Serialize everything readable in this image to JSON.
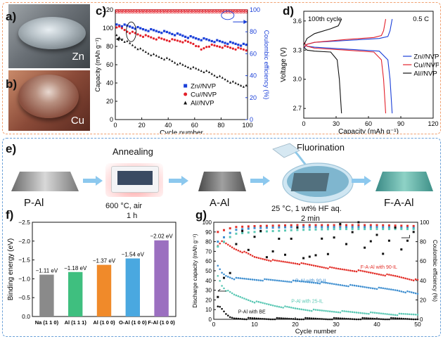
{
  "panels": {
    "a": "a)",
    "b": "b)",
    "c": "c)",
    "d": "d)",
    "e": "e)",
    "f": "f)",
    "g": "g)"
  },
  "photos": {
    "a_metal": "Zn",
    "b_metal": "Cu"
  },
  "colors": {
    "top_border": "#f0a070",
    "bottom_border": "#6aa0d8",
    "zn": "#1a3fd8",
    "cu": "#e3202a",
    "al": "#111111",
    "ce_marker": "#e3202a",
    "green_series": "#5bc8b4",
    "blue_series": "#3f8fd0",
    "red_series": "#e3302a",
    "black_series": "#111111"
  },
  "chart_c": {
    "ylabel": "Capacity (mAh g⁻¹)",
    "y2label": "Coulombic efficiency (%)",
    "xlabel": "Cycle number",
    "xticks": [
      "0",
      "20",
      "40",
      "60",
      "80",
      "100"
    ],
    "yticks": [
      "0",
      "20",
      "40",
      "60",
      "80",
      "100",
      "120"
    ],
    "y2ticks": [
      "0",
      "20",
      "40",
      "60",
      "80",
      "100"
    ],
    "legend": [
      {
        "name": "Zn//NVP",
        "color": "#1a3fd8",
        "marker": "square"
      },
      {
        "name": "Cu//NVP",
        "color": "#e3202a",
        "marker": "circle"
      },
      {
        "name": "Al//NVP",
        "color": "#111111",
        "marker": "triangle"
      }
    ]
  },
  "chart_d": {
    "ylabel": "Voltage (V)",
    "xlabel": "Capacity (mAh g⁻¹)",
    "xticks": [
      "0",
      "30",
      "60",
      "90",
      "120"
    ],
    "yticks": [
      "2.7",
      "3.0",
      "3.3",
      "3.6"
    ],
    "annotation_cycle": "100th cycle",
    "annotation_rate": "0.5 C",
    "legend": [
      {
        "name": "Zn//NVP",
        "color": "#1a3fd8"
      },
      {
        "name": "Cu//NVP",
        "color": "#e3202a"
      },
      {
        "name": "Al//NVP",
        "color": "#111111"
      }
    ]
  },
  "process": {
    "steps": [
      {
        "label": "P-Al"
      },
      {
        "label": "A-Al"
      },
      {
        "label": "F-A-Al"
      }
    ],
    "annealing": {
      "title": "Annealing",
      "cond1": "600 °C, air",
      "cond2": "1 h"
    },
    "fluorination": {
      "title": "Fluorination",
      "cond1": "25 °C, 1 wt% HF aq.",
      "cond2": "2 min"
    }
  },
  "chart_f": {
    "ylabel": "Binding energy (eV)",
    "yticks": [
      "0.0",
      "−0.5",
      "−1.0",
      "−1.5",
      "−2.0",
      "−2.5"
    ],
    "categories": [
      "Na (1 1 0)",
      "Al (1 1 1)",
      "Al (1 0 0)",
      "O-Al (1 0 0)",
      "F-Al (1 0 0)"
    ],
    "labels": [
      "−1.11 eV",
      "−1.18 eV",
      "−1.37 eV",
      "−1.54 eV",
      "−2.02 eV"
    ],
    "colors": [
      "#8a8a8a",
      "#3fbf7f",
      "#f08a2a",
      "#4aa8e0",
      "#9b6fc0"
    ]
  },
  "chart_g": {
    "ylabel": "Discharge capacity (mAh g⁻¹)",
    "y2label": "Coulombic efficiency (%)",
    "xlabel": "Cycle number",
    "xticks": [
      "0",
      "10",
      "20",
      "30",
      "40",
      "50"
    ],
    "yticks": [
      "0",
      "10",
      "20",
      "30",
      "40",
      "50",
      "60",
      "70",
      "80",
      "90",
      "100"
    ],
    "y2ticks": [
      "0",
      "20",
      "40",
      "60",
      "80",
      "100"
    ],
    "labels": [
      "F-A-Al with 90-IL",
      "P-Al with 90-IL",
      "P-Al with 25-IL",
      "P-Al with BE"
    ]
  },
  "chart_data": [
    {
      "type": "scatter",
      "title": "",
      "xlabel": "Cycle number",
      "ylabel": "Capacity (mAh g⁻¹)",
      "xlim": [
        0,
        100
      ],
      "ylim": [
        0,
        120
      ],
      "y2lim": [
        0,
        100
      ],
      "series": [
        {
          "name": "Zn//NVP",
          "x": [
            1,
            10,
            20,
            30,
            40,
            50,
            60,
            70,
            80,
            90,
            100
          ],
          "y": [
            104,
            102,
            99,
            97,
            95,
            92,
            89,
            87,
            85,
            83,
            81
          ]
        },
        {
          "name": "Cu//NVP",
          "x": [
            1,
            10,
            20,
            30,
            40,
            50,
            60,
            65,
            70,
            80,
            90,
            100
          ],
          "y": [
            102,
            96,
            92,
            89,
            87,
            86,
            83,
            76,
            81,
            80,
            78,
            76
          ]
        },
        {
          "name": "Al//NVP",
          "x": [
            1,
            5,
            10,
            20,
            30,
            40,
            50,
            60,
            70,
            80,
            90,
            100
          ],
          "y": [
            92,
            88,
            84,
            76,
            70,
            66,
            60,
            56,
            52,
            46,
            40,
            36
          ]
        },
        {
          "name": "CE Zn",
          "x": [
            1,
            20,
            40,
            60,
            80,
            100
          ],
          "y": [
            99,
            99,
            99,
            99,
            99,
            99
          ]
        },
        {
          "name": "CE Cu",
          "x": [
            1,
            20,
            40,
            60,
            80,
            100
          ],
          "y": [
            99,
            99,
            99,
            99,
            99,
            99
          ]
        },
        {
          "name": "CE Al",
          "x": [
            1,
            20,
            40,
            60,
            80,
            100
          ],
          "y": [
            98,
            98,
            98,
            98,
            98,
            98
          ]
        }
      ]
    },
    {
      "type": "line",
      "title": "",
      "xlabel": "Capacity (mAh g⁻¹)",
      "ylabel": "Voltage (V)",
      "xlim": [
        0,
        120
      ],
      "ylim": [
        2.6,
        3.7
      ],
      "series": [
        {
          "name": "Zn//NVP charge",
          "x": [
            0,
            3,
            10,
            40,
            70,
            78,
            80,
            82
          ],
          "y": [
            3.32,
            3.36,
            3.38,
            3.4,
            3.42,
            3.44,
            3.5,
            3.62
          ]
        },
        {
          "name": "Zn//NVP discharge",
          "x": [
            0,
            3,
            10,
            40,
            70,
            78,
            80,
            82
          ],
          "y": [
            3.38,
            3.34,
            3.33,
            3.31,
            3.29,
            3.2,
            3.0,
            2.65
          ]
        },
        {
          "name": "Cu//NVP charge",
          "x": [
            0,
            3,
            10,
            40,
            65,
            72,
            74,
            76
          ],
          "y": [
            3.33,
            3.36,
            3.38,
            3.41,
            3.43,
            3.45,
            3.5,
            3.62
          ]
        },
        {
          "name": "Cu//NVP discharge",
          "x": [
            0,
            3,
            10,
            40,
            65,
            72,
            74,
            76
          ],
          "y": [
            3.38,
            3.34,
            3.32,
            3.3,
            3.28,
            3.2,
            3.0,
            2.65
          ]
        },
        {
          "name": "Al//NVP charge",
          "x": [
            0,
            3,
            10,
            25,
            32,
            35
          ],
          "y": [
            3.35,
            3.42,
            3.47,
            3.52,
            3.55,
            3.62
          ]
        },
        {
          "name": "Al//NVP discharge",
          "x": [
            0,
            3,
            10,
            25,
            31,
            33,
            35
          ],
          "y": [
            3.33,
            3.3,
            3.29,
            3.28,
            3.2,
            3.0,
            2.65
          ]
        }
      ]
    },
    {
      "type": "bar",
      "title": "",
      "xlabel": "",
      "ylabel": "Binding energy (eV)",
      "categories": [
        "Na (1 1 0)",
        "Al (1 1 1)",
        "Al (1 0 0)",
        "O-Al (1 0 0)",
        "F-Al (1 0 0)"
      ],
      "values": [
        -1.11,
        -1.18,
        -1.37,
        -1.54,
        -2.02
      ],
      "ylim": [
        0,
        -2.5
      ]
    },
    {
      "type": "scatter",
      "title": "",
      "xlabel": "Cycle number",
      "ylabel": "Discharge capacity (mAh g⁻¹)",
      "xlim": [
        0,
        50
      ],
      "ylim": [
        0,
        100
      ],
      "y2lim": [
        0,
        100
      ],
      "series": [
        {
          "name": "F-A-Al with 90-IL",
          "x": [
            1,
            2,
            3,
            5,
            8,
            10,
            15,
            20,
            25,
            30,
            35,
            40,
            45,
            50
          ],
          "y": [
            75,
            80,
            78,
            73,
            68,
            64,
            60,
            58,
            55,
            52,
            50,
            47,
            44,
            40
          ]
        },
        {
          "name": "P-Al with 90-IL",
          "x": [
            1,
            2,
            3,
            5,
            10,
            15,
            20,
            25,
            30,
            35,
            40,
            45,
            50
          ],
          "y": [
            55,
            48,
            45,
            42,
            41,
            40,
            39,
            38,
            36,
            34,
            32,
            30,
            26
          ]
        },
        {
          "name": "P-Al with 25-IL",
          "x": [
            1,
            2,
            3,
            5,
            10,
            15,
            20,
            25,
            30,
            35,
            40,
            45,
            50
          ],
          "y": [
            45,
            35,
            30,
            25,
            18,
            14,
            11,
            9,
            8,
            7,
            6,
            5,
            5
          ]
        },
        {
          "name": "P-Al with BE",
          "x": [
            1,
            2,
            3,
            4,
            5,
            10,
            20,
            30,
            40,
            50
          ],
          "y": [
            14,
            10,
            5,
            2,
            1,
            0.5,
            0.5,
            0.5,
            0.5,
            0.5
          ]
        },
        {
          "name": "CE F-A-Al 90-IL",
          "x": [
            1,
            5,
            10,
            20,
            30,
            40,
            50
          ],
          "y": [
            90,
            95,
            96,
            97,
            97,
            97,
            96
          ]
        },
        {
          "name": "CE P-Al 90-IL",
          "x": [
            1,
            5,
            10,
            20,
            30,
            40,
            50
          ],
          "y": [
            80,
            92,
            94,
            95,
            95,
            95,
            94
          ]
        },
        {
          "name": "CE P-Al 25-IL",
          "x": [
            1,
            5,
            10,
            20,
            30,
            40,
            50
          ],
          "y": [
            75,
            88,
            90,
            92,
            93,
            93,
            93
          ]
        },
        {
          "name": "CE P-Al BE",
          "x": [
            2,
            5,
            10,
            15,
            20,
            25,
            30,
            35,
            40,
            45,
            50
          ],
          "y": [
            20,
            75,
            85,
            70,
            90,
            60,
            82,
            88,
            75,
            85,
            80
          ]
        }
      ]
    }
  ]
}
